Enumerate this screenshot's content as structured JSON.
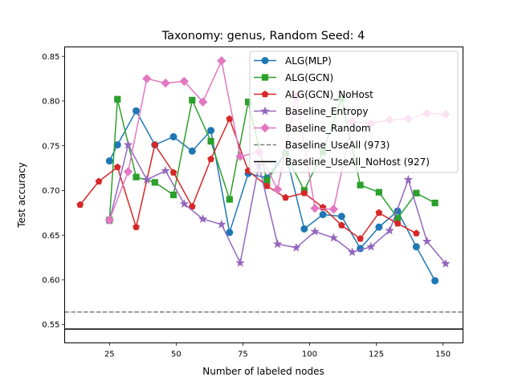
{
  "chart_data": {
    "type": "line",
    "title": "Taxonomy: genus, Random Seed: 4",
    "xlabel": "Number of labeled nodes",
    "ylabel": "Test accuracy",
    "xlim": [
      8.2,
      157.5
    ],
    "ylim": [
      0.5295,
      0.8605
    ],
    "xticks": [
      25,
      50,
      75,
      100,
      125,
      150
    ],
    "xtick_labels": [
      "25",
      "50",
      "75",
      "100",
      "125",
      "150"
    ],
    "yticks": [
      0.55,
      0.6,
      0.65,
      0.7,
      0.75,
      0.8,
      0.85
    ],
    "ytick_labels": [
      "0.55",
      "0.60",
      "0.65",
      "0.70",
      "0.75",
      "0.80",
      "0.85"
    ],
    "grid": false,
    "legend_position": "upper right",
    "series": [
      {
        "name": "ALG(MLP)",
        "color": "#1f77b4",
        "marker": "circle",
        "x": [
          25,
          28,
          35,
          42,
          49,
          56,
          63,
          70,
          77,
          84,
          91,
          98,
          105,
          112,
          119,
          126,
          133,
          140,
          147
        ],
        "y": [
          0.733,
          0.751,
          0.789,
          0.751,
          0.76,
          0.744,
          0.767,
          0.653,
          0.719,
          0.714,
          0.742,
          0.657,
          0.673,
          0.671,
          0.635,
          0.659,
          0.677,
          0.637,
          0.599
        ]
      },
      {
        "name": "ALG(GCN)",
        "color": "#2ca02c",
        "marker": "square",
        "x": [
          25,
          28,
          35,
          42,
          49,
          56,
          63,
          70,
          77,
          84,
          91,
          98,
          105,
          112,
          119,
          126,
          133,
          140,
          147
        ],
        "y": [
          0.667,
          0.802,
          0.715,
          0.709,
          0.695,
          0.801,
          0.755,
          0.69,
          0.799,
          0.711,
          0.741,
          0.7,
          0.743,
          0.803,
          0.706,
          0.698,
          0.669,
          0.697,
          0.686
        ]
      },
      {
        "name": "ALG(GCN)_NoHost",
        "color": "#d62728",
        "marker": "pentagon",
        "x": [
          14,
          21,
          28,
          35,
          42,
          49,
          56,
          63,
          70,
          77,
          84,
          91,
          98,
          105,
          112,
          119,
          126,
          133,
          140
        ],
        "y": [
          0.684,
          0.71,
          0.726,
          0.659,
          0.751,
          0.72,
          0.682,
          0.735,
          0.78,
          0.722,
          0.705,
          0.692,
          0.697,
          0.681,
          0.661,
          0.646,
          0.675,
          0.663,
          0.652
        ]
      },
      {
        "name": "Baseline_Entropy",
        "color": "#9467bd",
        "marker": "star",
        "x": [
          25,
          32,
          39,
          46,
          53,
          60,
          67,
          74,
          81,
          88,
          95,
          102,
          109,
          116,
          123,
          130,
          137,
          144,
          151
        ],
        "y": [
          0.666,
          0.751,
          0.712,
          0.722,
          0.685,
          0.668,
          0.662,
          0.619,
          0.728,
          0.64,
          0.636,
          0.654,
          0.647,
          0.631,
          0.637,
          0.655,
          0.712,
          0.643,
          0.618
        ]
      },
      {
        "name": "Baseline_Random",
        "color": "#e377c2",
        "marker": "diamond",
        "x": [
          25,
          32,
          39,
          46,
          53,
          60,
          67,
          74,
          81,
          88,
          95,
          102,
          109,
          116,
          123,
          130,
          137,
          144,
          151
        ],
        "y": [
          0.667,
          0.721,
          0.825,
          0.82,
          0.822,
          0.799,
          0.845,
          0.738,
          0.743,
          0.701,
          0.806,
          0.68,
          0.679,
          0.777,
          0.775,
          0.779,
          0.78,
          0.786,
          0.785
        ]
      }
    ],
    "hlines": [
      {
        "name": "Baseline_UseAll (973)",
        "y": 0.564,
        "color": "#7f7f7f",
        "style": "dashed"
      },
      {
        "name": "Baseline_UseAll_NoHost (927)",
        "y": 0.545,
        "color": "#000000",
        "style": "solid"
      }
    ],
    "legend": [
      "ALG(MLP)",
      "ALG(GCN)",
      "ALG(GCN)_NoHost",
      "Baseline_Entropy",
      "Baseline_Random",
      "Baseline_UseAll (973)",
      "Baseline_UseAll_NoHost (927)"
    ]
  }
}
